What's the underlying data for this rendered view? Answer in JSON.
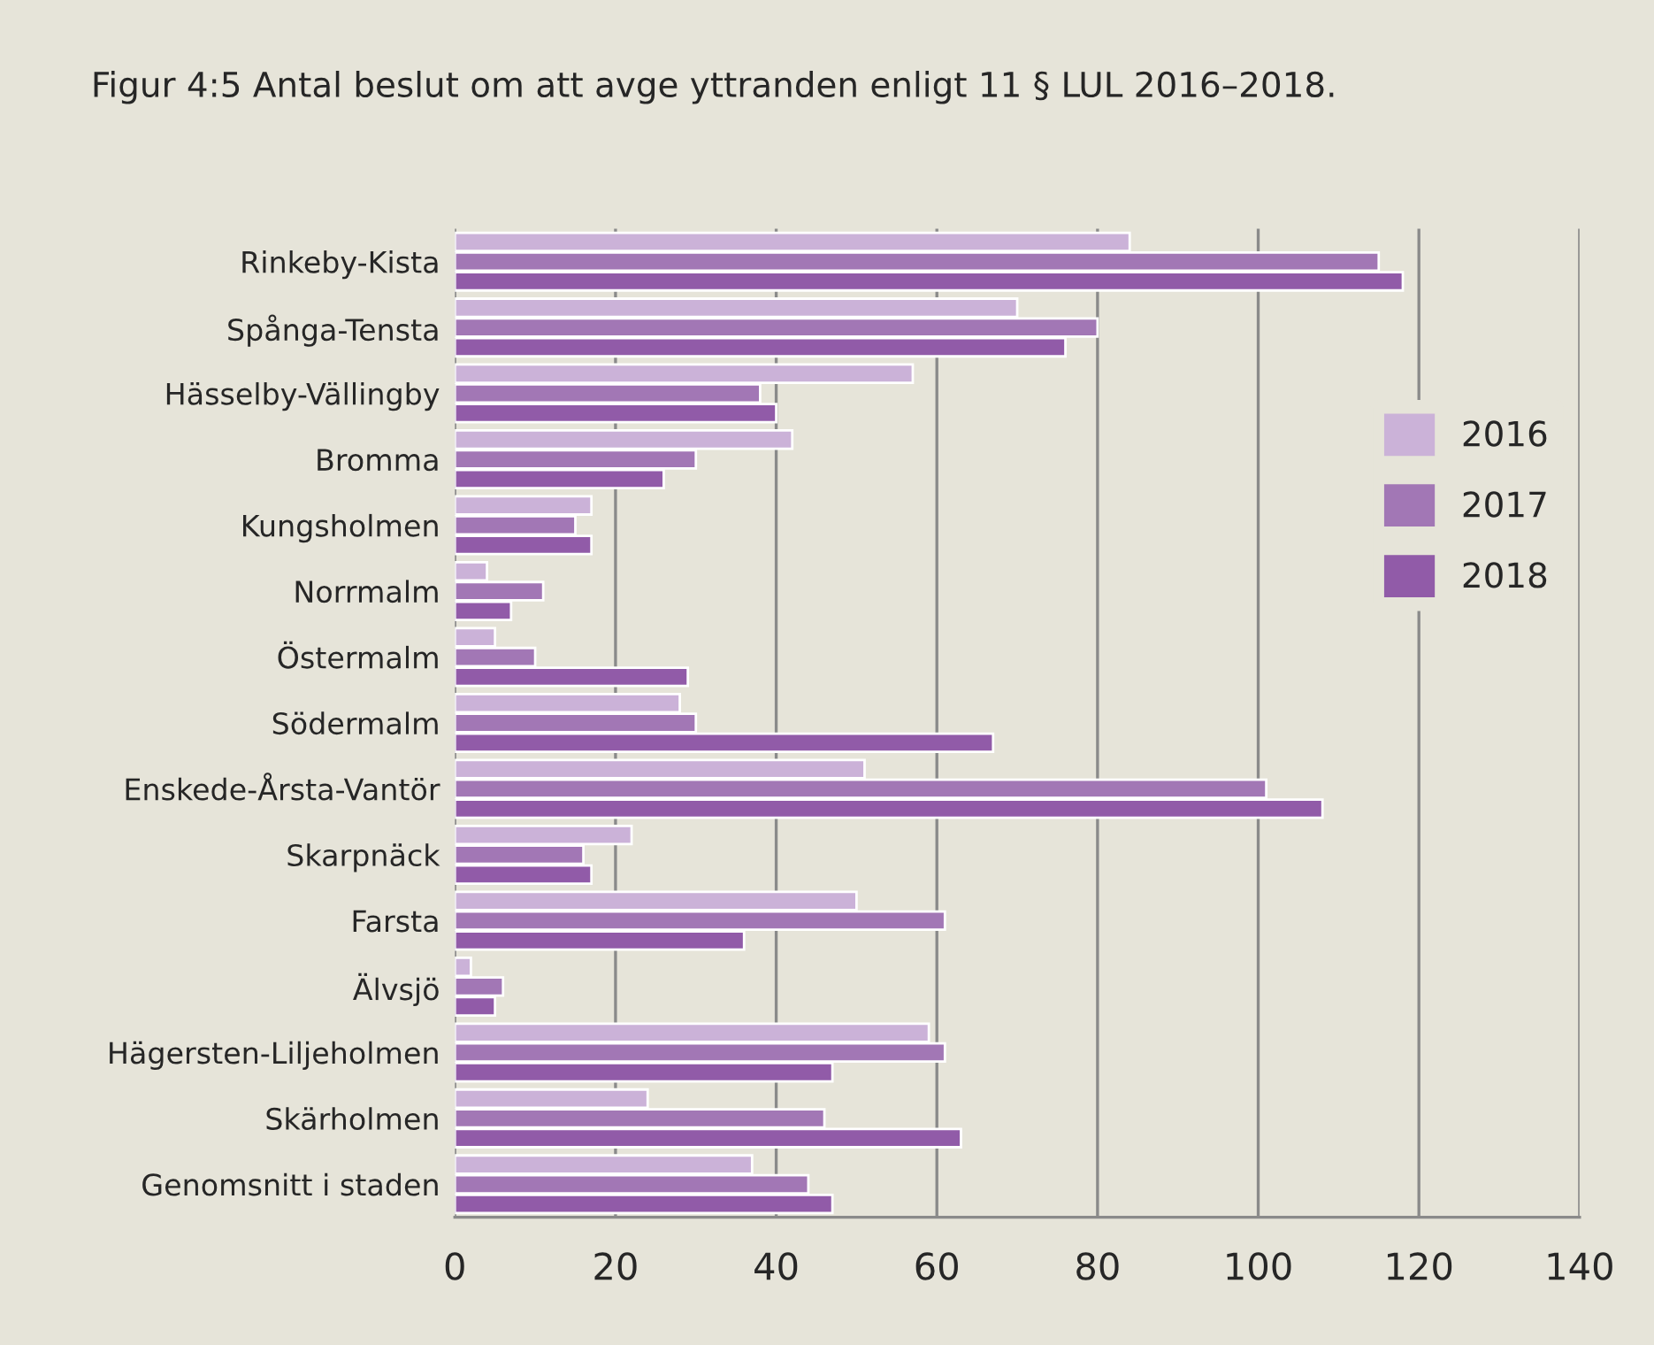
{
  "chart_data": {
    "type": "bar",
    "orientation": "horizontal",
    "title": "Figur 4:5 Antal beslut om att avge yttranden enligt 11 § LUL 2016–2018.",
    "categories": [
      "Rinkeby-Kista",
      "Spånga-Tensta",
      "Hässelby-Vällingby",
      "Bromma",
      "Kungsholmen",
      "Norrmalm",
      "Östermalm",
      "Södermalm",
      "Enskede-Årsta-Vantör",
      "Skarpnäck",
      "Farsta",
      "Älvsjö",
      "Hägersten-Liljeholmen",
      "Skärholmen",
      "Genomsnitt i staden"
    ],
    "series": [
      {
        "name": "2016",
        "color": "#cbb2d8",
        "values": [
          84,
          70,
          57,
          42,
          17,
          4,
          5,
          28,
          51,
          22,
          50,
          2,
          59,
          24,
          37
        ]
      },
      {
        "name": "2017",
        "color": "#a277b5",
        "values": [
          115,
          80,
          38,
          30,
          15,
          11,
          10,
          30,
          101,
          16,
          61,
          6,
          61,
          46,
          44
        ]
      },
      {
        "name": "2018",
        "color": "#915ba8",
        "values": [
          118,
          76,
          40,
          26,
          17,
          7,
          29,
          67,
          108,
          17,
          36,
          5,
          47,
          63,
          47
        ]
      }
    ],
    "xlim": [
      0,
      140
    ],
    "xticks": [
      0,
      20,
      40,
      60,
      80,
      100,
      120,
      140
    ],
    "grid": "x",
    "legend": "right"
  }
}
